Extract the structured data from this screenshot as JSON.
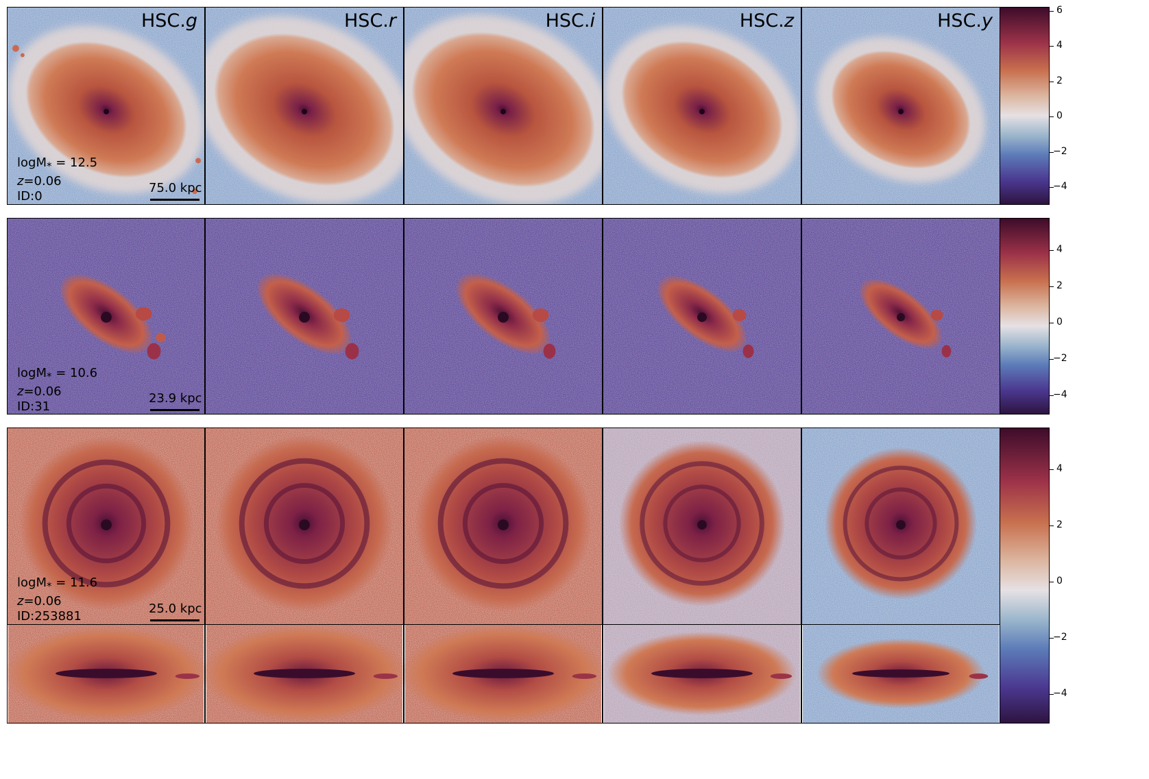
{
  "bands": [
    {
      "prefix": "HSC.",
      "letter": "g"
    },
    {
      "prefix": "HSC.",
      "letter": "r"
    },
    {
      "prefix": "HSC.",
      "letter": "i"
    },
    {
      "prefix": "HSC.",
      "letter": "z"
    },
    {
      "prefix": "HSC.",
      "letter": "y"
    }
  ],
  "rows": [
    {
      "logm_label": "logM",
      "logm_sub": "*",
      "logm_value": " = 12.5",
      "z_label": "z",
      "z_value": "=0.06",
      "id_text": "ID:0",
      "scale_text": "75.0 kpc",
      "colorbar_ticks": [
        "6",
        "4",
        "2",
        "0",
        "−2",
        "−4"
      ]
    },
    {
      "logm_label": "logM",
      "logm_sub": "*",
      "logm_value": " = 10.6",
      "z_label": "z",
      "z_value": "=0.06",
      "id_text": "ID:31",
      "scale_text": "23.9 kpc",
      "colorbar_ticks": [
        "4",
        "2",
        "0",
        "−2",
        "−4"
      ]
    },
    {
      "logm_label": "logM",
      "logm_sub": "*",
      "logm_value": " = 11.6",
      "z_label": "z",
      "z_value": "=0.06",
      "id_text": "ID:253881",
      "scale_text": "25.0 kpc",
      "colorbar_ticks": [
        "4",
        "2",
        "0",
        "−2",
        "−4"
      ]
    }
  ],
  "colormap": {
    "name": "twilight_shifted",
    "low": "#2e1440",
    "mid": "#e6e1e4",
    "high": "#3d0c2a"
  }
}
